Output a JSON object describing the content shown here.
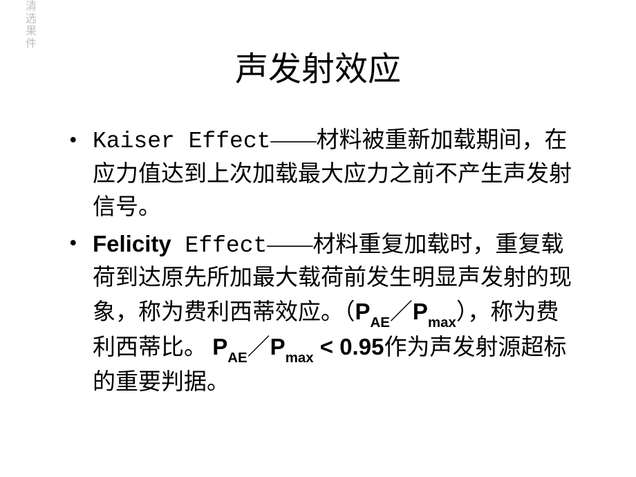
{
  "watermark": "清选果件",
  "title": "声发射效应",
  "bullets": [
    {
      "lead_mono": "Kaiser Effect",
      "dash": "——",
      "body": "材料被重新加载期间，在应力值达到上次加载最大应力之前不产生声发射信号。"
    },
    {
      "lead_bold": "Felicity",
      "lead_rest_mono": " Effect",
      "dash": "——",
      "body1": "材料重复加载时，重复载荷到达原先所加最大载荷前发生明显声发射的现象，称为费利西蒂效应。（",
      "ratio1_main": "P",
      "ratio1_sub": "AE",
      "slash1": "／",
      "ratio2_main": "P",
      "ratio2_sub": "max",
      "body2": "），称为费利西蒂比。 ",
      "ratio3_main": "P",
      "ratio3_sub": "AE",
      "slash2": "／",
      "ratio4_main": "P",
      "ratio4_sub": "max",
      "lt": " < 0.95",
      "body3": "作为声发射源超标的重要判据。"
    }
  ]
}
